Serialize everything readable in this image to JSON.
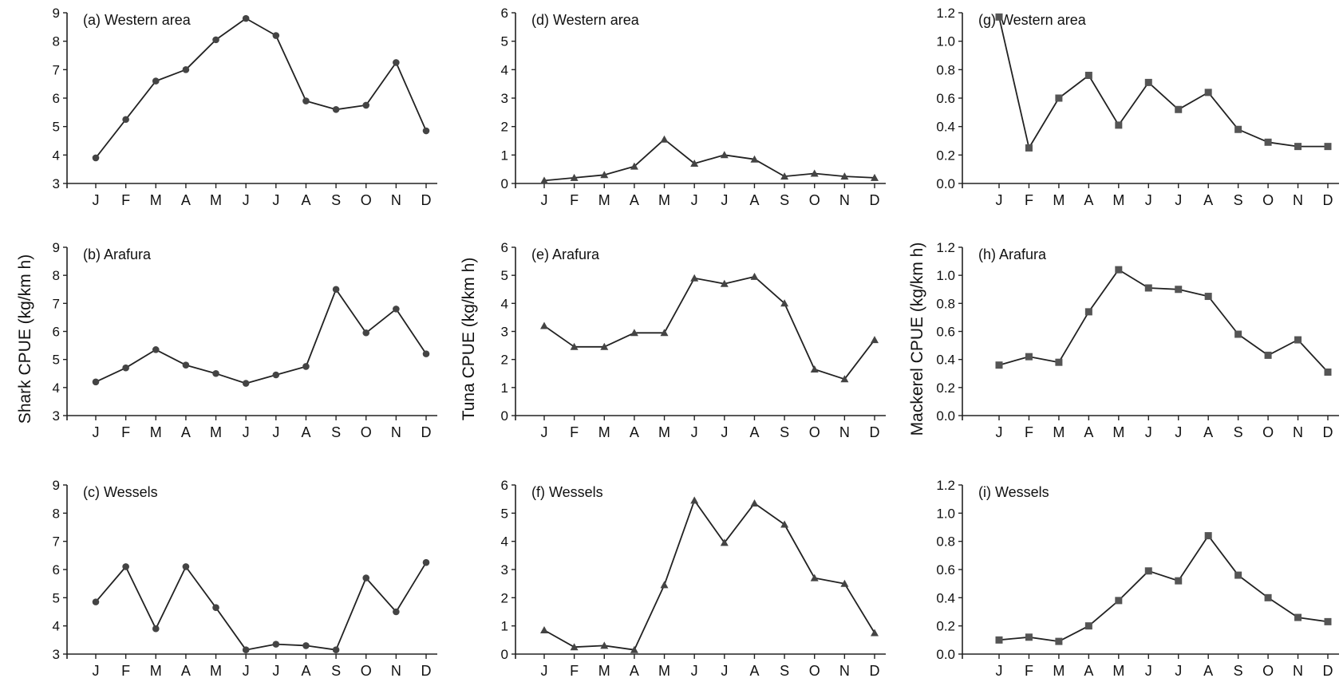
{
  "ylabels": {
    "shark": "Shark CPUE (kg/km h)",
    "tuna": "Tuna CPUE (kg/km h)",
    "mackerel": "Mackerel CPUE (kg/km h)"
  },
  "chart_data": [
    {
      "panel": "a",
      "type": "line",
      "title": "(a) Western area",
      "categories": [
        "J",
        "F",
        "M",
        "A",
        "M",
        "J",
        "J",
        "A",
        "S",
        "O",
        "N",
        "D"
      ],
      "values": [
        3.9,
        5.25,
        6.6,
        7.0,
        8.05,
        8.8,
        8.2,
        5.9,
        5.6,
        5.75,
        7.25,
        4.85
      ],
      "ylim": [
        3,
        9
      ],
      "yticks": [
        3,
        4,
        5,
        6,
        7,
        8,
        9
      ],
      "marker": "circle"
    },
    {
      "panel": "b",
      "type": "line",
      "title": "(b) Arafura",
      "categories": [
        "J",
        "F",
        "M",
        "A",
        "M",
        "J",
        "J",
        "A",
        "S",
        "O",
        "N",
        "D"
      ],
      "values": [
        4.2,
        4.7,
        5.35,
        4.8,
        4.5,
        4.15,
        4.45,
        4.75,
        7.5,
        5.95,
        6.8,
        5.2
      ],
      "ylim": [
        3,
        9
      ],
      "yticks": [
        3,
        4,
        5,
        6,
        7,
        8,
        9
      ],
      "marker": "circle"
    },
    {
      "panel": "c",
      "type": "line",
      "title": "(c) Wessels",
      "categories": [
        "J",
        "F",
        "M",
        "A",
        "M",
        "J",
        "J",
        "A",
        "S",
        "O",
        "N",
        "D"
      ],
      "values": [
        4.85,
        6.1,
        3.9,
        6.1,
        4.65,
        3.15,
        3.35,
        3.3,
        3.15,
        5.7,
        4.5,
        6.25
      ],
      "ylim": [
        3,
        9
      ],
      "yticks": [
        3,
        4,
        5,
        6,
        7,
        8,
        9
      ],
      "marker": "circle"
    },
    {
      "panel": "d",
      "type": "line",
      "title": "(d) Western area",
      "categories": [
        "J",
        "F",
        "M",
        "A",
        "M",
        "J",
        "J",
        "A",
        "S",
        "O",
        "N",
        "D"
      ],
      "values": [
        0.1,
        0.2,
        0.3,
        0.6,
        1.55,
        0.7,
        1.0,
        0.85,
        0.25,
        0.35,
        0.25,
        0.2
      ],
      "ylim": [
        0,
        6
      ],
      "yticks": [
        0,
        1,
        2,
        3,
        4,
        5,
        6
      ],
      "marker": "triangle"
    },
    {
      "panel": "e",
      "type": "line",
      "title": "(e) Arafura",
      "categories": [
        "J",
        "F",
        "M",
        "A",
        "M",
        "J",
        "J",
        "A",
        "S",
        "O",
        "N",
        "D"
      ],
      "values": [
        3.2,
        2.45,
        2.45,
        2.95,
        2.95,
        4.9,
        4.7,
        4.95,
        4.0,
        1.65,
        1.3,
        2.7
      ],
      "ylim": [
        0,
        6
      ],
      "yticks": [
        0,
        1,
        2,
        3,
        4,
        5,
        6
      ],
      "marker": "triangle"
    },
    {
      "panel": "f",
      "type": "line",
      "title": "(f) Wessels",
      "categories": [
        "J",
        "F",
        "M",
        "A",
        "M",
        "J",
        "J",
        "A",
        "S",
        "O",
        "N",
        "D"
      ],
      "values": [
        0.85,
        0.25,
        0.3,
        0.15,
        2.45,
        5.45,
        3.95,
        5.35,
        4.6,
        2.7,
        2.5,
        0.75
      ],
      "ylim": [
        0,
        6
      ],
      "yticks": [
        0,
        1,
        2,
        3,
        4,
        5,
        6
      ],
      "marker": "triangle"
    },
    {
      "panel": "g",
      "type": "line",
      "title": "(g) Western area",
      "categories": [
        "J",
        "F",
        "M",
        "A",
        "M",
        "J",
        "J",
        "A",
        "S",
        "O",
        "N",
        "D"
      ],
      "values": [
        1.17,
        0.25,
        0.6,
        0.76,
        0.41,
        0.71,
        0.52,
        0.64,
        0.38,
        0.29,
        0.26,
        0.26
      ],
      "ylim": [
        0,
        1.2
      ],
      "yticks": [
        "0.0",
        "0.2",
        "0.4",
        "0.6",
        "0.8",
        "1.0",
        "1.2"
      ],
      "marker": "square"
    },
    {
      "panel": "h",
      "type": "line",
      "title": "(h) Arafura",
      "categories": [
        "J",
        "F",
        "M",
        "A",
        "M",
        "J",
        "J",
        "A",
        "S",
        "O",
        "N",
        "D"
      ],
      "values": [
        0.36,
        0.42,
        0.38,
        0.74,
        1.04,
        0.91,
        0.9,
        0.85,
        0.58,
        0.43,
        0.54,
        0.31
      ],
      "ylim": [
        0,
        1.2
      ],
      "yticks": [
        "0.0",
        "0.2",
        "0.4",
        "0.6",
        "0.8",
        "1.0",
        "1.2"
      ],
      "marker": "square"
    },
    {
      "panel": "i",
      "type": "line",
      "title": "(i) Wessels",
      "categories": [
        "J",
        "F",
        "M",
        "A",
        "M",
        "J",
        "J",
        "A",
        "S",
        "O",
        "N",
        "D"
      ],
      "values": [
        0.1,
        0.12,
        0.09,
        0.2,
        0.38,
        0.59,
        0.52,
        0.84,
        0.56,
        0.4,
        0.26,
        0.23
      ],
      "ylim": [
        0,
        1.2
      ],
      "yticks": [
        "0.0",
        "0.2",
        "0.4",
        "0.6",
        "0.8",
        "1.0",
        "1.2"
      ],
      "marker": "square"
    }
  ]
}
